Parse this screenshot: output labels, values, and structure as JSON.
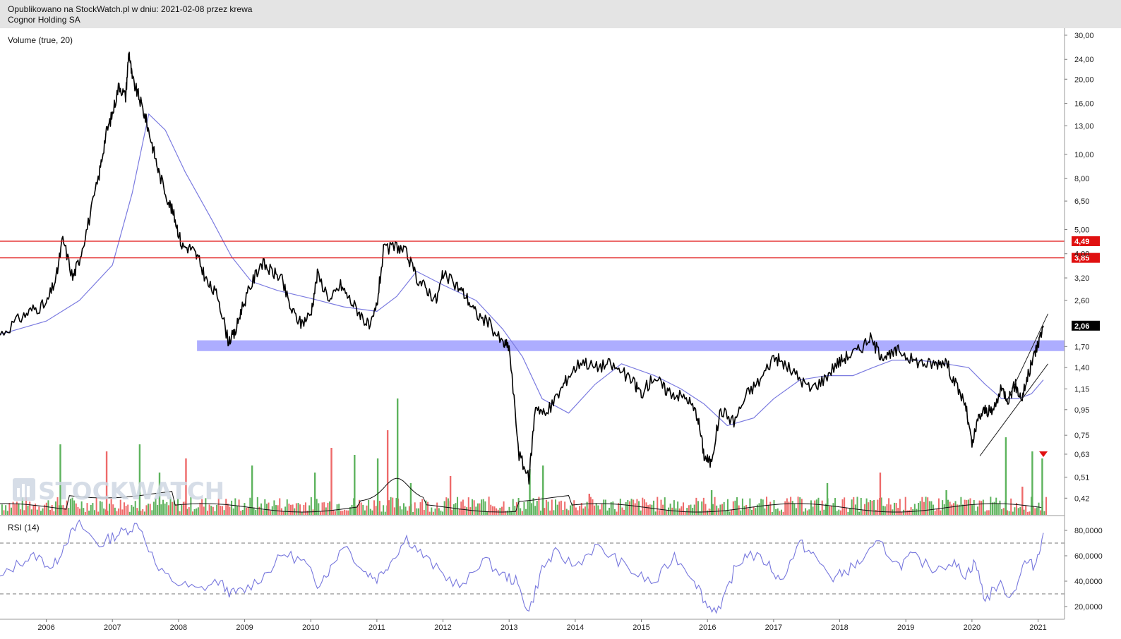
{
  "header": {
    "line1": "Opublikowano na StockWatch.pl w dniu: 2021-02-08 przez krewa",
    "line2": "Cognor Holding SA"
  },
  "watermark": {
    "text": "STOCKWATCH",
    "icon": "bar-chart-icon"
  },
  "colors": {
    "price": "#000000",
    "ma": "#7b7be0",
    "resistance": "#e01010",
    "support_band": "#a9a9ff",
    "vol_up": "#5db35d",
    "vol_down": "#ee6a6a",
    "rsi": "#7777dd",
    "grid": "#cccccc",
    "last_price_bg": "#000000",
    "level_bg": "#e01010",
    "signal": "#e01010"
  },
  "chart_data": [
    {
      "type": "line",
      "name": "price",
      "scale": "log",
      "ylim": [
        0.36,
        32
      ],
      "xlim": [
        2005.3,
        2021.4
      ],
      "y_ticks": [
        "30,00",
        "24,00",
        "20,00",
        "16,00",
        "13,00",
        "10,00",
        "8,00",
        "6,50",
        "5,00",
        "4,00",
        "3,20",
        "2,60",
        "2,06",
        "1,70",
        "1,40",
        "1,15",
        "0,95",
        "0,75",
        "0,63",
        "0,51",
        "0,42"
      ],
      "y_tick_values": [
        30,
        24,
        20,
        16,
        13,
        10,
        8,
        6.5,
        5,
        4,
        3.2,
        2.6,
        2.06,
        1.7,
        1.4,
        1.15,
        0.95,
        0.75,
        0.63,
        0.51,
        0.42
      ],
      "x_ticks": [
        "2006",
        "2007",
        "2008",
        "2009",
        "2010",
        "2011",
        "2012",
        "2013",
        "2014",
        "2015",
        "2016",
        "2017",
        "2018",
        "2019",
        "2020",
        "2021"
      ],
      "x_tick_values": [
        2006,
        2007,
        2008,
        2009,
        2010,
        2011,
        2012,
        2013,
        2014,
        2015,
        2016,
        2017,
        2018,
        2019,
        2020,
        2021
      ],
      "x": [
        2005.3,
        2005.6,
        2005.8,
        2006.0,
        2006.15,
        2006.25,
        2006.4,
        2006.5,
        2006.65,
        2006.8,
        2006.9,
        2007.0,
        2007.1,
        2007.2,
        2007.25,
        2007.3,
        2007.4,
        2007.5,
        2007.6,
        2007.7,
        2007.85,
        2007.95,
        2008.05,
        2008.2,
        2008.3,
        2008.45,
        2008.6,
        2008.75,
        2008.85,
        2008.95,
        2009.1,
        2009.25,
        2009.4,
        2009.55,
        2009.7,
        2009.85,
        2010.0,
        2010.1,
        2010.3,
        2010.45,
        2010.6,
        2010.75,
        2010.9,
        2011.0,
        2011.1,
        2011.3,
        2011.45,
        2011.6,
        2011.75,
        2011.9,
        2012.0,
        2012.2,
        2012.35,
        2012.5,
        2012.7,
        2012.9,
        2013.0,
        2013.15,
        2013.3,
        2013.4,
        2013.55,
        2013.75,
        2013.9,
        2014.1,
        2014.3,
        2014.5,
        2014.7,
        2014.9,
        2015.0,
        2015.2,
        2015.35,
        2015.5,
        2015.7,
        2015.85,
        2015.95,
        2016.05,
        2016.2,
        2016.4,
        2016.6,
        2016.8,
        2017.0,
        2017.15,
        2017.35,
        2017.55,
        2017.75,
        2017.95,
        2018.1,
        2018.3,
        2018.45,
        2018.6,
        2018.75,
        2018.9,
        2019.1,
        2019.3,
        2019.45,
        2019.6,
        2019.75,
        2019.9,
        2020.0,
        2020.1,
        2020.2,
        2020.3,
        2020.45,
        2020.55,
        2020.65,
        2020.75,
        2020.85,
        2020.95,
        2021.0,
        2021.08
      ],
      "values": [
        1.9,
        2.2,
        2.4,
        2.5,
        3.2,
        4.6,
        3.2,
        3.8,
        5.5,
        8.3,
        12.0,
        14.5,
        19.0,
        17.0,
        26.0,
        20.0,
        17.0,
        14.0,
        11.0,
        8.5,
        6.5,
        5.5,
        4.3,
        4.2,
        3.8,
        3.0,
        2.7,
        1.8,
        1.9,
        2.4,
        3.0,
        3.7,
        3.4,
        3.2,
        2.4,
        2.1,
        2.3,
        3.3,
        2.6,
        3.0,
        2.6,
        2.3,
        2.0,
        2.5,
        4.1,
        4.3,
        4.0,
        3.2,
        2.9,
        2.6,
        3.3,
        3.0,
        2.7,
        2.3,
        2.1,
        1.75,
        1.7,
        0.63,
        0.5,
        1.0,
        0.9,
        1.1,
        1.3,
        1.5,
        1.4,
        1.45,
        1.35,
        1.2,
        1.1,
        1.3,
        1.15,
        1.1,
        1.05,
        0.9,
        0.62,
        0.58,
        0.95,
        0.85,
        1.1,
        1.25,
        1.55,
        1.45,
        1.3,
        1.15,
        1.25,
        1.45,
        1.55,
        1.65,
        1.85,
        1.6,
        1.55,
        1.65,
        1.5,
        1.45,
        1.45,
        1.5,
        1.2,
        1.0,
        0.68,
        0.88,
        0.95,
        0.92,
        1.15,
        1.05,
        1.2,
        1.05,
        1.3,
        1.6,
        1.75,
        2.06
      ]
    },
    {
      "type": "line",
      "name": "ma",
      "x": [
        2005.3,
        2006.0,
        2006.5,
        2007.0,
        2007.3,
        2007.55,
        2007.8,
        2008.1,
        2008.5,
        2008.8,
        2009.1,
        2009.5,
        2010.0,
        2010.5,
        2011.0,
        2011.3,
        2011.6,
        2012.0,
        2012.5,
        2012.9,
        2013.2,
        2013.5,
        2013.9,
        2014.3,
        2014.7,
        2015.2,
        2015.6,
        2015.95,
        2016.3,
        2016.7,
        2017.0,
        2017.4,
        2017.8,
        2018.2,
        2018.5,
        2018.8,
        2019.2,
        2019.6,
        2019.95,
        2020.2,
        2020.45,
        2020.7,
        2020.9,
        2021.08
      ],
      "values": [
        1.9,
        2.15,
        2.6,
        3.6,
        7.0,
        14.5,
        12.5,
        8.5,
        5.5,
        3.9,
        3.1,
        2.85,
        2.65,
        2.45,
        2.35,
        2.7,
        3.4,
        3.0,
        2.6,
        2.0,
        1.55,
        1.05,
        0.92,
        1.2,
        1.45,
        1.3,
        1.15,
        1.0,
        0.82,
        0.88,
        1.05,
        1.25,
        1.3,
        1.3,
        1.4,
        1.5,
        1.5,
        1.45,
        1.4,
        1.2,
        1.05,
        1.05,
        1.1,
        1.25
      ]
    },
    {
      "type": "bar",
      "name": "volume",
      "caption": "Volume (true, 20)",
      "x": [
        2006.2,
        2006.9,
        2007.4,
        2007.7,
        2008.1,
        2009.1,
        2010.05,
        2010.3,
        2010.65,
        2011.0,
        2011.15,
        2011.3,
        2011.5,
        2012.1,
        2013.3,
        2013.5,
        2014.2,
        2016.05,
        2017.8,
        2018.6,
        2019.6,
        2020.5,
        2020.75,
        2020.9,
        2021.05
      ],
      "values": [
        100,
        90,
        100,
        60,
        80,
        70,
        60,
        95,
        85,
        80,
        120,
        165,
        45,
        55,
        65,
        70,
        30,
        35,
        45,
        60,
        35,
        110,
        40,
        90,
        80
      ]
    },
    {
      "type": "line",
      "name": "rsi",
      "caption": "RSI (14)",
      "ylim": [
        10,
        90
      ],
      "y_ticks": [
        "80,0000",
        "60,0000",
        "40,0000",
        "20,0000"
      ],
      "y_tick_values": [
        80,
        60,
        40,
        20
      ],
      "levels": [
        70,
        30
      ],
      "x": [
        2005.3,
        2005.6,
        2005.85,
        2006.1,
        2006.3,
        2006.5,
        2006.8,
        2007.0,
        2007.2,
        2007.4,
        2007.7,
        2008.0,
        2008.3,
        2008.6,
        2008.8,
        2009.0,
        2009.3,
        2009.6,
        2009.9,
        2010.1,
        2010.3,
        2010.5,
        2010.8,
        2011.0,
        2011.2,
        2011.45,
        2011.7,
        2012.0,
        2012.3,
        2012.6,
        2012.9,
        2013.1,
        2013.3,
        2013.5,
        2013.7,
        2014.0,
        2014.3,
        2014.6,
        2014.9,
        2015.2,
        2015.5,
        2015.8,
        2016.0,
        2016.2,
        2016.4,
        2016.6,
        2016.9,
        2017.1,
        2017.4,
        2017.6,
        2017.9,
        2018.1,
        2018.3,
        2018.6,
        2018.9,
        2019.1,
        2019.4,
        2019.7,
        2019.9,
        2020.05,
        2020.2,
        2020.4,
        2020.6,
        2020.8,
        2020.95,
        2021.08
      ],
      "values": [
        42,
        55,
        60,
        50,
        72,
        85,
        68,
        75,
        80,
        85,
        48,
        38,
        33,
        40,
        30,
        33,
        45,
        62,
        55,
        38,
        50,
        70,
        48,
        42,
        55,
        74,
        60,
        45,
        35,
        58,
        45,
        40,
        16,
        50,
        62,
        52,
        67,
        58,
        46,
        38,
        60,
        42,
        20,
        18,
        48,
        62,
        55,
        40,
        70,
        60,
        42,
        48,
        55,
        70,
        52,
        60,
        50,
        55,
        45,
        55,
        25,
        38,
        28,
        55,
        52,
        78
      ]
    }
  ],
  "levels": [
    {
      "label": "4,49",
      "value": 4.49
    },
    {
      "label": "3,85",
      "value": 3.85
    }
  ],
  "last_price": {
    "label": "2,06",
    "value": 2.06
  },
  "support_band": {
    "from": 1.63,
    "to": 1.8,
    "x_start": 2008.28,
    "x_end": 2021.4
  },
  "channel": {
    "upper": {
      "x1": 2020.52,
      "y1": 1.02,
      "x2": 2021.15,
      "y2": 2.3
    },
    "lower": {
      "x1": 2020.12,
      "y1": 0.62,
      "x2": 2021.15,
      "y2": 1.45
    }
  },
  "signal": {
    "x": 2021.08,
    "value": 0.63
  }
}
